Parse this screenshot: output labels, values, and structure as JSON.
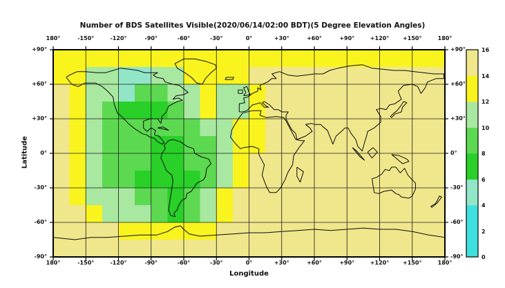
{
  "figure": {
    "title": "Number of BDS Satellites Visible(2020/06/14/02:00 BDT)(5 Degree Elevation Angles)"
  },
  "axes": {
    "x_label": "Longitude",
    "y_label": "Latitude",
    "x_tick_labels": [
      "180°",
      "-150°",
      "-120°",
      "-90°",
      "-60°",
      "-30°",
      "0°",
      "+30°",
      "+60°",
      "+90°",
      "+120°",
      "+150°",
      "180°"
    ],
    "y_tick_labels": [
      "+90°",
      "+60°",
      "+30°",
      "0°",
      "-30°",
      "-60°",
      "-90°"
    ]
  },
  "colorbar": {
    "tick_labels_top_to_bottom": [
      "16",
      "14",
      "12",
      "10",
      "8",
      "6",
      "4",
      "2",
      "0"
    ],
    "segment_colors_bottom_to_top": [
      "#3FE0E0",
      "#3FE0E0",
      "#91E6C8",
      "#28D028",
      "#5CD950",
      "#A8E8A0",
      "#FAF41E",
      "#F0E68C"
    ]
  },
  "chart_data": {
    "type": "heatmap",
    "title": "Number of BDS Satellites Visible(2020/06/14/02:00 BDT)(5 Degree Elevation Angles)",
    "xlabel": "Longitude",
    "ylabel": "Latitude",
    "x_range_deg": [
      -180,
      180
    ],
    "y_range_deg": [
      -90,
      90
    ],
    "x_tick_step_deg": 30,
    "y_tick_step_deg": 30,
    "value_range": [
      0,
      16
    ],
    "colorbar_tick_step": 2,
    "grid_on": true,
    "legend_position": "right-colorbar",
    "cell_size_deg": 15,
    "bucket_value_ranges": {
      "K": "14-16",
      "Y": "12-14",
      "P": "10-12",
      "G": "8-10",
      "V": "6-8",
      "A": "4-6",
      "C": "0-4"
    },
    "bucket_colors": {
      "K": "#F0E68C",
      "Y": "#FAF41E",
      "P": "#A8E8A0",
      "G": "#5CD950",
      "V": "#28D028",
      "A": "#91E6C8",
      "C": "#3FE0E0"
    },
    "grid_rows_lat_90N_to_90S_lon_180W_to_180E": [
      "YYYYYYYYYYYYYYYYYYYYYYYY",
      "YYPPAAPPYYYYKKKKKKKKKKKK",
      "KYPPAGGPPYPPYKKKKKKKKKKK",
      "KYPGVVVGPYPPYKKKKKKKKKKK",
      "KYPGGGGGGPPYYKKKKKKKKKKK",
      "KYPGGGVVGGPYYKKKKKKKKKKK",
      "KYPGGGVVGGPYKKKKKKKKKKKK",
      "KYPGGVVVVGPYKKKKKKKKKKKK",
      "KYPPPGGVGPYKKKKKKKKKKKKK",
      "KKYPPPGVGPYKKKKKKKKKKKKK",
      "KKKKYYYYYYKKKKKKKKKKKKKK",
      "KKKKKKKKKKKKKKKKKKKKKKKK"
    ],
    "description": "Number of visible BDS satellites over a world map; lowest visibility (4-10) centered over the Americas, 14-16 over the Eastern Hemisphere, 12-14 band along the far north and around the low-visibility region."
  }
}
